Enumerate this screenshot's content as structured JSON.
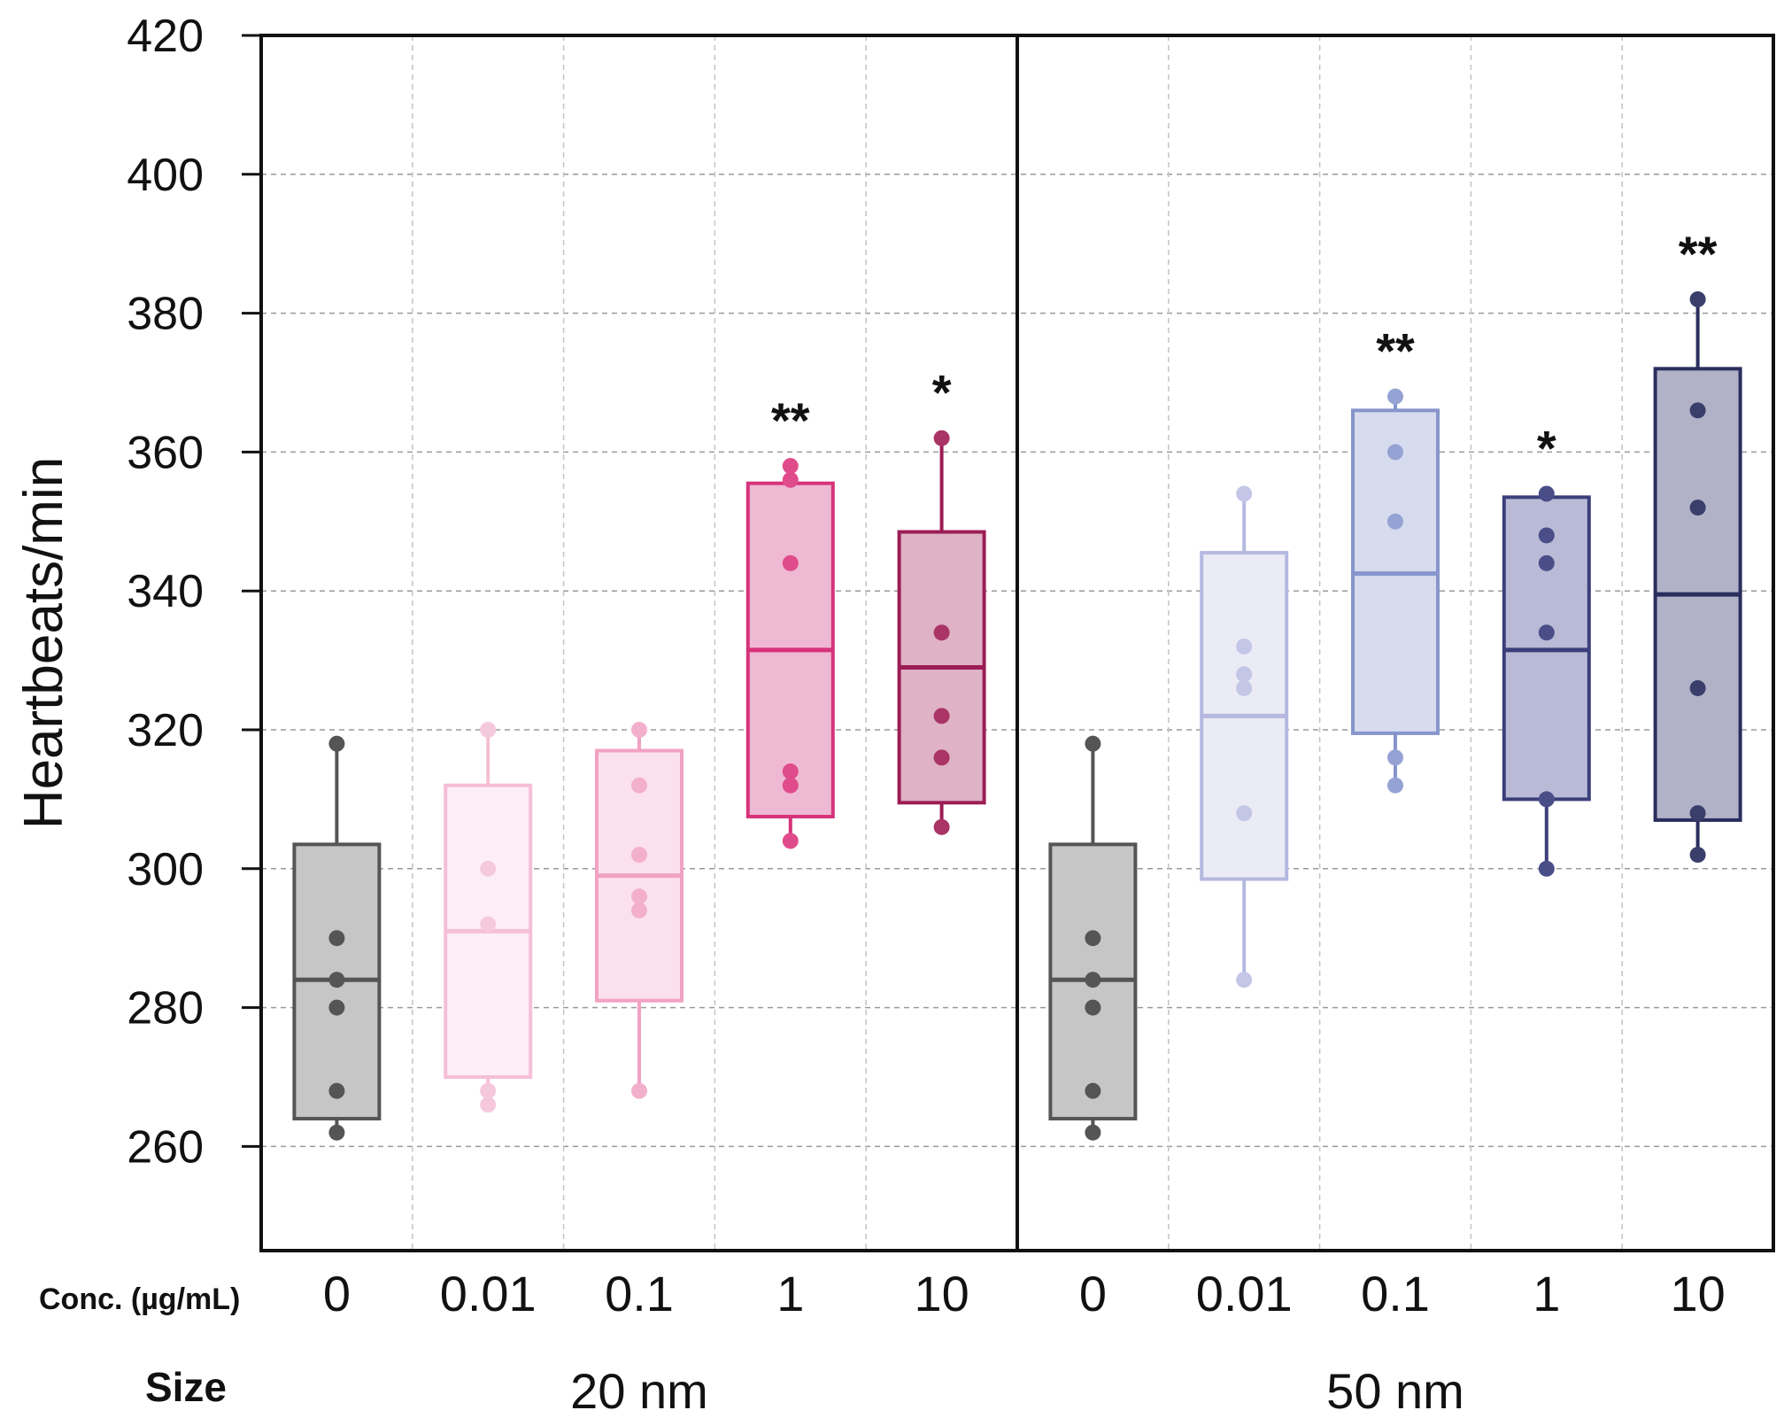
{
  "chart_data": {
    "type": "boxplot",
    "title": "",
    "ylabel": "Heartbeats/min",
    "ylim": [
      245,
      420
    ],
    "yticks": [
      260,
      280,
      300,
      320,
      340,
      360,
      380,
      400,
      420
    ],
    "conc_label": "Conc. (µg/mL)",
    "size_label": "Size",
    "groups": [
      {
        "size": "20 nm",
        "boxes": [
          {
            "conc": "0",
            "q1": 264,
            "median": 284,
            "q3": 303.5,
            "whisker_low": 262,
            "whisker_high": 318,
            "points": [
              262,
              268,
              280,
              284,
              290,
              318
            ],
            "sig": "",
            "color": "#555555",
            "fill": "#c6c6c6",
            "point_color": "#555555"
          },
          {
            "conc": "0.01",
            "q1": 270,
            "median": 291,
            "q3": 312,
            "whisker_low": 266,
            "whisker_high": 320,
            "points": [
              266,
              268,
              292,
              300,
              320
            ],
            "sig": "",
            "color": "#f5bfd6",
            "fill": "#fdeef5",
            "point_color": "#f5c9dc"
          },
          {
            "conc": "0.1",
            "q1": 281,
            "median": 299,
            "q3": 317,
            "whisker_low": 268,
            "whisker_high": 320,
            "points": [
              268,
              294,
              296,
              302,
              312,
              320
            ],
            "sig": "",
            "color": "#f2a2c3",
            "fill": "#fbe1ec",
            "point_color": "#f3b0cc"
          },
          {
            "conc": "1",
            "q1": 307.5,
            "median": 331.5,
            "q3": 355.5,
            "whisker_low": 304,
            "whisker_high": 358,
            "points": [
              304,
              312,
              314,
              344,
              356,
              358
            ],
            "sig": "**",
            "color": "#d6337a",
            "fill": "#efb9d3",
            "point_color": "#e04c8b"
          },
          {
            "conc": "10",
            "q1": 309.5,
            "median": 329,
            "q3": 348.5,
            "whisker_low": 306,
            "whisker_high": 362,
            "points": [
              306,
              316,
              322,
              334,
              362
            ],
            "sig": "*",
            "color": "#9c1d55",
            "fill": "#dfb2c5",
            "point_color": "#a93465"
          }
        ]
      },
      {
        "size": "50 nm",
        "boxes": [
          {
            "conc": "0",
            "q1": 264,
            "median": 284,
            "q3": 303.5,
            "whisker_low": 262,
            "whisker_high": 318,
            "points": [
              262,
              268,
              280,
              284,
              290,
              318
            ],
            "sig": "",
            "color": "#555555",
            "fill": "#c6c6c6",
            "point_color": "#555555"
          },
          {
            "conc": "0.01",
            "q1": 298.5,
            "median": 322,
            "q3": 345.5,
            "whisker_low": 284,
            "whisker_high": 354,
            "points": [
              284,
              308,
              326,
              328,
              332,
              354
            ],
            "sig": "",
            "color": "#b5b9e0",
            "fill": "#ebebf6",
            "point_color": "#c3c6e6"
          },
          {
            "conc": "0.1",
            "q1": 319.5,
            "median": 342.5,
            "q3": 366,
            "whisker_low": 312,
            "whisker_high": 368,
            "points": [
              312,
              316,
              350,
              360,
              368
            ],
            "sig": "**",
            "color": "#8795cc",
            "fill": "#d6dbee",
            "point_color": "#95a2d4"
          },
          {
            "conc": "1",
            "q1": 310,
            "median": 331.5,
            "q3": 353.5,
            "whisker_low": 300,
            "whisker_high": 354,
            "points": [
              300,
              310,
              334,
              344,
              348,
              354
            ],
            "sig": "*",
            "color": "#3c3f7a",
            "fill": "#b9bbd6",
            "point_color": "#4a4e88"
          },
          {
            "conc": "10",
            "q1": 307,
            "median": 339.5,
            "q3": 372,
            "whisker_low": 302,
            "whisker_high": 382,
            "points": [
              302,
              308,
              326,
              352,
              366,
              382
            ],
            "sig": "**",
            "color": "#2a2e5e",
            "fill": "#b1b2c8",
            "point_color": "#3a3e6a"
          }
        ]
      }
    ]
  }
}
